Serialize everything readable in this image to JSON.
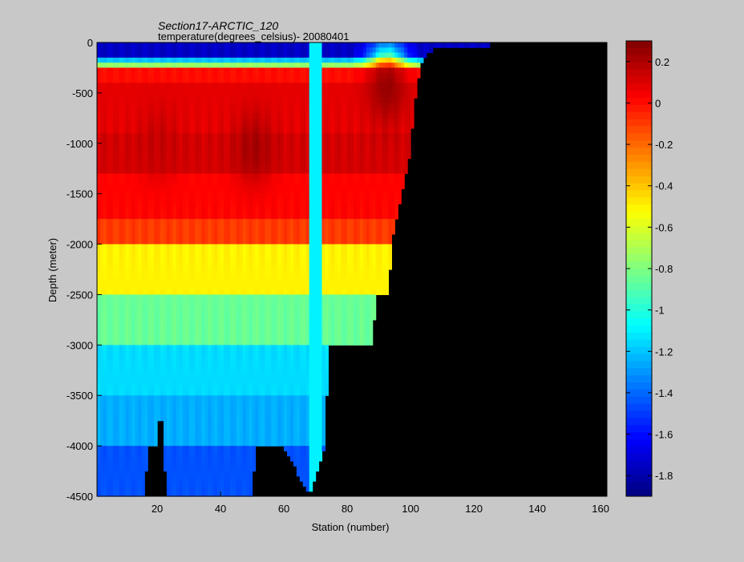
{
  "chart_data": {
    "type": "heatmap",
    "title": "Section17-ARCTIC_120",
    "subtitle": "temperature(degrees_celsius)- 20080401",
    "xlabel": "Station (number)",
    "ylabel": "Depth (meter)",
    "xlim": [
      1,
      162
    ],
    "ylim": [
      -4500,
      0
    ],
    "xticks": [
      20,
      40,
      60,
      80,
      100,
      120,
      140,
      160
    ],
    "yticks": [
      0,
      -500,
      -1000,
      -1500,
      -2000,
      -2500,
      -3000,
      -3500,
      -4000,
      -4500
    ],
    "colorbar": {
      "clim": [
        -1.9,
        0.3
      ],
      "ticks": [
        0.2,
        0,
        -0.2,
        -0.4,
        -0.6,
        -0.8,
        -1,
        -1.2,
        -1.4,
        -1.6,
        -1.8
      ],
      "tick_labels": [
        "0.2",
        "0",
        "-0.2",
        "-0.4",
        "-0.6",
        "-0.8",
        "-1",
        "-1.2",
        "-1.4",
        "-1.6",
        "-1.8"
      ],
      "colormap": "jet"
    },
    "background_color": "#000000",
    "layers": [
      {
        "ztop": 0,
        "zbot": -150,
        "value": -1.75
      },
      {
        "ztop": -150,
        "zbot": -200,
        "value": -1.2
      },
      {
        "ztop": -200,
        "zbot": -250,
        "value": -0.75
      },
      {
        "ztop": -250,
        "zbot": -400,
        "value": 0.0
      },
      {
        "ztop": -400,
        "zbot": -900,
        "value": 0.08
      },
      {
        "ztop": -900,
        "zbot": -1300,
        "value": 0.12
      },
      {
        "ztop": -1300,
        "zbot": -1750,
        "value": 0.02
      },
      {
        "ztop": -1750,
        "zbot": -2000,
        "value": -0.1
      },
      {
        "ztop": -2000,
        "zbot": -2500,
        "value": -0.5
      },
      {
        "ztop": -2500,
        "zbot": -3000,
        "value": -0.85
      },
      {
        "ztop": -3000,
        "zbot": -3500,
        "value": -1.15
      },
      {
        "ztop": -3500,
        "zbot": -4000,
        "value": -1.25
      },
      {
        "ztop": -4000,
        "zbot": -4500,
        "value": -1.45
      }
    ],
    "bottom_depth": [
      {
        "x": 1,
        "depth": -4500
      },
      {
        "x": 16,
        "depth": -4500
      },
      {
        "x": 17,
        "depth": -4000
      },
      {
        "x": 20,
        "depth": -4000
      },
      {
        "x": 21,
        "depth": -3500
      },
      {
        "x": 23,
        "depth": -4500
      },
      {
        "x": 50,
        "depth": -4500
      },
      {
        "x": 51,
        "depth": -4000
      },
      {
        "x": 57,
        "depth": -4000
      },
      {
        "x": 60,
        "depth": -4000
      },
      {
        "x": 68,
        "depth": -4500
      },
      {
        "x": 73,
        "depth": -4000
      },
      {
        "x": 74,
        "depth": -3000
      },
      {
        "x": 88,
        "depth": -3000
      },
      {
        "x": 89,
        "depth": -2500
      },
      {
        "x": 93,
        "depth": -2500
      },
      {
        "x": 94,
        "depth": -2000
      },
      {
        "x": 95,
        "depth": -1800
      },
      {
        "x": 97,
        "depth": -1500
      },
      {
        "x": 99,
        "depth": -1250
      },
      {
        "x": 100,
        "depth": -1000
      },
      {
        "x": 102,
        "depth": -400
      },
      {
        "x": 103,
        "depth": -250
      },
      {
        "x": 104,
        "depth": -150
      },
      {
        "x": 106,
        "depth": -80
      },
      {
        "x": 111,
        "depth": -60
      },
      {
        "x": 120,
        "depth": -40
      },
      {
        "x": 127,
        "depth": -20
      },
      {
        "x": 134,
        "depth": -10
      },
      {
        "x": 137,
        "depth": 0
      },
      {
        "x": 162,
        "depth": 0
      }
    ],
    "column_overrides": [
      {
        "x0": 68,
        "x1": 72,
        "ztop": 0,
        "zbot": -4500,
        "value": -1.1
      }
    ],
    "warm_features": [
      {
        "x": 92,
        "z": -450,
        "value": 0.25
      },
      {
        "x": 50,
        "z": -1050,
        "value": 0.22
      },
      {
        "x": 20,
        "z": -1000,
        "value": 0.15
      }
    ]
  }
}
